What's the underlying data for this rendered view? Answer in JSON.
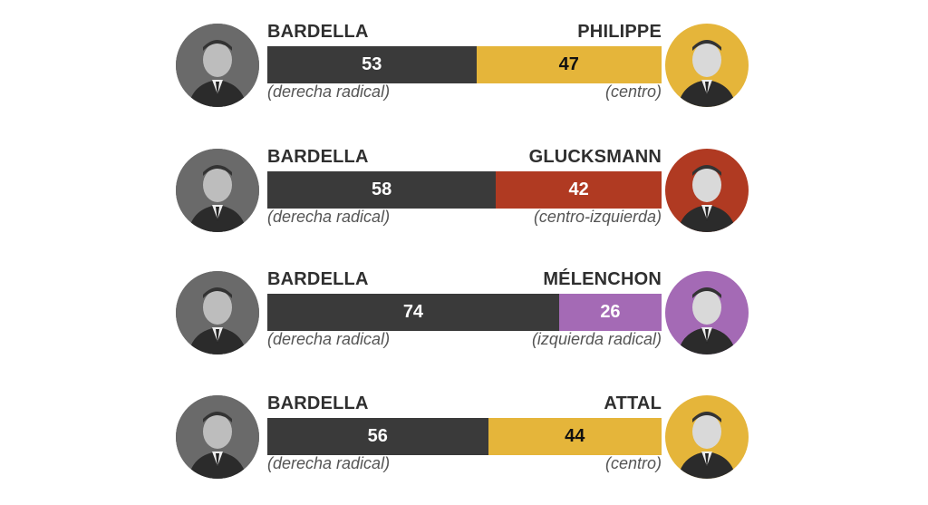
{
  "colors": {
    "bardella": "#3a3a3a",
    "centro": "#e5b53a",
    "centro_izquierda": "#b03a22",
    "izquierda_radical": "#a46ab5"
  },
  "chart_data": {
    "type": "bar",
    "orientation": "horizontal-stacked-100",
    "matchups": [
      {
        "left": {
          "name": "BARDELLA",
          "subtitle": "(derecha radical)",
          "value": 53,
          "color": "#3a3a3a"
        },
        "right": {
          "name": "PHILIPPE",
          "subtitle": "(centro)",
          "value": 47,
          "color": "#e5b53a"
        }
      },
      {
        "left": {
          "name": "BARDELLA",
          "subtitle": "(derecha radical)",
          "value": 58,
          "color": "#3a3a3a"
        },
        "right": {
          "name": "GLUCKSMANN",
          "subtitle": "(centro-izquierda)",
          "value": 42,
          "color": "#b03a22"
        }
      },
      {
        "left": {
          "name": "BARDELLA",
          "subtitle": "(derecha radical)",
          "value": 74,
          "color": "#3a3a3a"
        },
        "right": {
          "name": "MÉLENCHON",
          "subtitle": "(izquierda radical)",
          "value": 26,
          "color": "#a46ab5"
        }
      },
      {
        "left": {
          "name": "BARDELLA",
          "subtitle": "(derecha radical)",
          "value": 56,
          "color": "#3a3a3a"
        },
        "right": {
          "name": "ATTAL",
          "subtitle": "(centro)",
          "value": 44,
          "color": "#e5b53a"
        }
      }
    ],
    "total": 100
  }
}
